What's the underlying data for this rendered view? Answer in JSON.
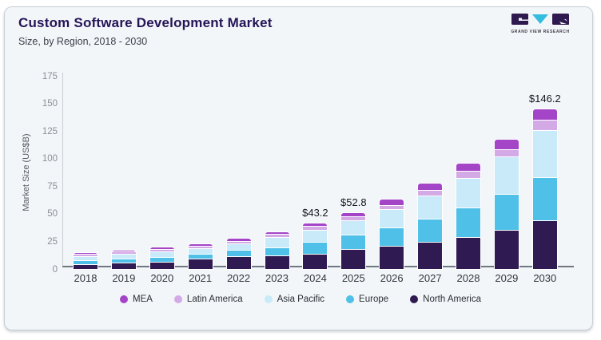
{
  "header": {
    "title": "Custom Software Development Market",
    "subtitle": "Size, by Region, 2018 - 2030",
    "logo_brand": "GRAND VIEW RESEARCH"
  },
  "chart_data": {
    "type": "bar",
    "subtype": "stacked-vertical",
    "title": "Custom Software Development Market Size, by Region, 2018 - 2030",
    "xlabel": "",
    "ylabel": "Market Size (US$B)",
    "ylim": [
      0,
      175
    ],
    "yticks": [
      0,
      25,
      50,
      75,
      100,
      125,
      150,
      175
    ],
    "grid": false,
    "categories": [
      "2018",
      "2019",
      "2020",
      "2021",
      "2022",
      "2023",
      "2024",
      "2025",
      "2026",
      "2027",
      "2028",
      "2029",
      "2030"
    ],
    "series": [
      {
        "name": "North America",
        "color": "#2f1a52",
        "values": [
          5.8,
          6.7,
          8.2,
          10.6,
          13.1,
          13.4,
          14.9,
          19.2,
          21.9,
          25.7,
          30.3,
          36.6,
          44.9
        ]
      },
      {
        "name": "Europe",
        "color": "#4fc0e8",
        "values": [
          3.7,
          4.2,
          4.4,
          4.6,
          6.2,
          7.7,
          11.5,
          13.9,
          16.9,
          21.3,
          26.8,
          32.6,
          39.4
        ]
      },
      {
        "name": "Asia Pacific",
        "color": "#c8eaf9",
        "values": [
          4.3,
          5.0,
          5.5,
          5.4,
          5.7,
          10.0,
          11.2,
          13.4,
          17.5,
          21.6,
          27.5,
          34.6,
          43.3
        ]
      },
      {
        "name": "Latin America",
        "color": "#d4aae6",
        "values": [
          1.3,
          1.5,
          1.5,
          1.6,
          1.9,
          1.9,
          2.7,
          2.6,
          2.9,
          4.3,
          5.8,
          6.5,
          9.2
        ]
      },
      {
        "name": "MEA",
        "color": "#a445c8",
        "values": [
          1.2,
          1.2,
          1.4,
          2.3,
          2.4,
          2.4,
          2.9,
          3.7,
          5.5,
          6.4,
          6.7,
          8.7,
          9.4
        ]
      }
    ],
    "totals": [
      16.3,
      18.6,
      21.0,
      24.5,
      29.3,
      35.4,
      43.2,
      52.8,
      64.7,
      79.3,
      97.1,
      119.0,
      146.2
    ],
    "annotations": [
      {
        "category": "2024",
        "label": "$43.2"
      },
      {
        "category": "2025",
        "label": "$52.8"
      },
      {
        "category": "2030",
        "label": "$146.2"
      }
    ],
    "legend": {
      "position": "bottom-center",
      "items": [
        {
          "label": "MEA",
          "color": "#a445c8"
        },
        {
          "label": "Latin America",
          "color": "#d4aae6"
        },
        {
          "label": "Asia Pacific",
          "color": "#c8eaf9"
        },
        {
          "label": "Europe",
          "color": "#4fc0e8"
        },
        {
          "label": "North America",
          "color": "#2f1a52"
        }
      ]
    }
  },
  "logo_colors": {
    "block": "#2e1a4e",
    "triangle": "#35bde0"
  }
}
